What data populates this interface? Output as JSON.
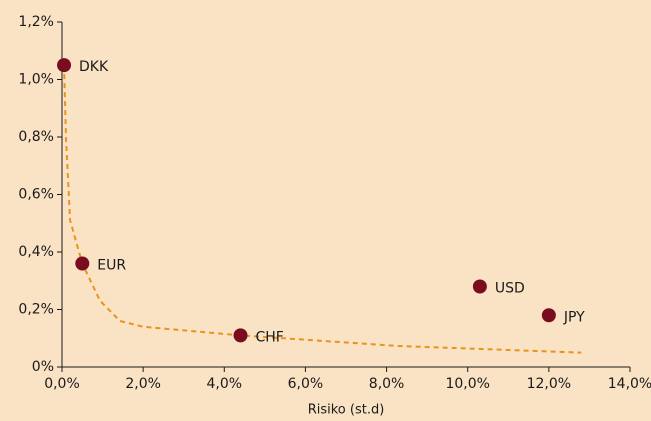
{
  "chart_data": {
    "type": "scatter",
    "xlabel": "Risiko (st.d)",
    "xlim": [
      0,
      14
    ],
    "xticks": [
      {
        "value": 0,
        "label": "0,0%"
      },
      {
        "value": 2,
        "label": "2,0%"
      },
      {
        "value": 4,
        "label": "4,0%"
      },
      {
        "value": 6,
        "label": "6,0%"
      },
      {
        "value": 8,
        "label": "8,0%"
      },
      {
        "value": 10,
        "label": "10,0%"
      },
      {
        "value": 12,
        "label": "12,0%"
      },
      {
        "value": 14,
        "label": "14,0%"
      }
    ],
    "ylim": [
      0,
      1.2
    ],
    "yticks": [
      {
        "value": 0,
        "label": "0%"
      },
      {
        "value": 0.2,
        "label": "0,2%"
      },
      {
        "value": 0.4,
        "label": "0,4%"
      },
      {
        "value": 0.6,
        "label": "0,6%"
      },
      {
        "value": 0.8,
        "label": "0,8%"
      },
      {
        "value": 1.0,
        "label": "1,0%"
      },
      {
        "value": 1.2,
        "label": "1,2%"
      }
    ],
    "points": {
      "color": "#7a0c1f",
      "labels": [
        "DKK",
        "EUR",
        "CHF",
        "USD",
        "JPY"
      ],
      "x": [
        0.05,
        0.5,
        4.4,
        10.3,
        12.0
      ],
      "values": [
        1.05,
        0.36,
        0.11,
        0.28,
        0.18
      ]
    },
    "frontier": {
      "color": "#e8931e",
      "dashed": true,
      "x": [
        0.05,
        0.1,
        0.2,
        0.5,
        0.94,
        1.43,
        2.0,
        4.4,
        8.3,
        12.8
      ],
      "values": [
        1.05,
        0.79,
        0.51,
        0.36,
        0.23,
        0.16,
        0.14,
        0.11,
        0.073,
        0.05
      ]
    }
  }
}
